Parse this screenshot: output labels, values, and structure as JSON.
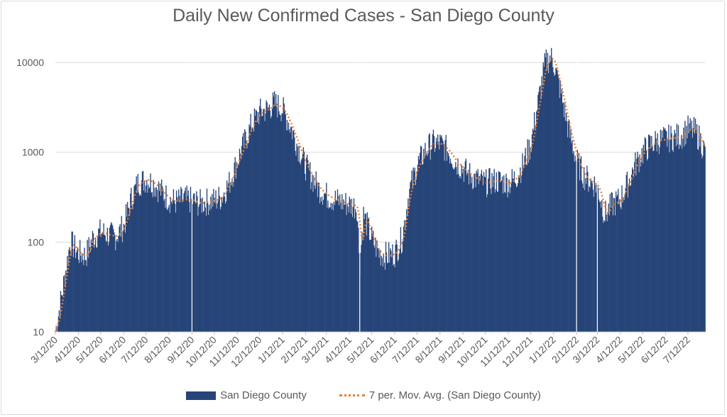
{
  "chart_data": {
    "type": "bar",
    "title": "Daily New Confirmed Cases - San Diego County",
    "y_scale": "log",
    "ylim": [
      10,
      20000
    ],
    "y_ticks": [
      "10",
      "100",
      "1000",
      "10000"
    ],
    "x_ticks": [
      "3/12/20",
      "4/12/20",
      "5/12/20",
      "6/12/20",
      "7/12/20",
      "8/12/20",
      "9/12/20",
      "10/12/20",
      "11/12/20",
      "12/12/20",
      "1/12/21",
      "2/12/21",
      "3/12/21",
      "4/12/21",
      "5/12/21",
      "6/12/21",
      "7/12/21",
      "8/12/21",
      "9/12/21",
      "10/12/21",
      "11/12/21",
      "12/12/21",
      "1/12/22",
      "2/12/22",
      "3/12/22",
      "4/12/22",
      "5/12/22",
      "6/12/22",
      "7/12/22"
    ],
    "grid": true,
    "legend_position": "bottom",
    "series": [
      {
        "name": "San Diego County",
        "kind": "bar",
        "color": "#264478",
        "points": [
          [
            "3/12/20",
            10
          ],
          [
            "3/22/20",
            30
          ],
          [
            "4/1/20",
            100
          ],
          [
            "4/12/20",
            75
          ],
          [
            "4/22/20",
            70
          ],
          [
            "5/1/20",
            110
          ],
          [
            "5/12/20",
            130
          ],
          [
            "5/22/20",
            120
          ],
          [
            "6/1/20",
            115
          ],
          [
            "6/12/20",
            150
          ],
          [
            "6/22/20",
            300
          ],
          [
            "7/1/20",
            450
          ],
          [
            "7/12/20",
            500
          ],
          [
            "7/22/20",
            450
          ],
          [
            "8/1/20",
            370
          ],
          [
            "8/12/20",
            300
          ],
          [
            "8/22/20",
            280
          ],
          [
            "9/1/20",
            300
          ],
          [
            "9/12/20",
            290
          ],
          [
            "9/22/20",
            270
          ],
          [
            "10/1/20",
            280
          ],
          [
            "10/12/20",
            290
          ],
          [
            "10/22/20",
            320
          ],
          [
            "11/1/20",
            450
          ],
          [
            "11/12/20",
            800
          ],
          [
            "11/22/20",
            1300
          ],
          [
            "12/1/20",
            2000
          ],
          [
            "12/12/20",
            2800
          ],
          [
            "12/22/20",
            3000
          ],
          [
            "1/1/21",
            3500
          ],
          [
            "1/12/21",
            3000
          ],
          [
            "1/22/21",
            2000
          ],
          [
            "2/1/21",
            1200
          ],
          [
            "2/12/21",
            700
          ],
          [
            "2/22/21",
            500
          ],
          [
            "3/1/21",
            400
          ],
          [
            "3/12/21",
            330
          ],
          [
            "3/22/21",
            300
          ],
          [
            "4/1/21",
            280
          ],
          [
            "4/12/21",
            260
          ],
          [
            "4/22/21",
            250
          ],
          [
            "4/26/21",
            60
          ],
          [
            "5/1/21",
            200
          ],
          [
            "5/12/21",
            110
          ],
          [
            "5/22/21",
            75
          ],
          [
            "6/1/21",
            70
          ],
          [
            "6/12/21",
            75
          ],
          [
            "6/22/21",
            110
          ],
          [
            "7/1/21",
            350
          ],
          [
            "7/12/21",
            700
          ],
          [
            "7/22/21",
            1000
          ],
          [
            "8/1/21",
            1250
          ],
          [
            "8/12/21",
            1250
          ],
          [
            "8/22/21",
            1050
          ],
          [
            "9/1/21",
            800
          ],
          [
            "9/12/21",
            650
          ],
          [
            "9/22/21",
            550
          ],
          [
            "10/1/21",
            500
          ],
          [
            "10/12/21",
            450
          ],
          [
            "10/22/21",
            480
          ],
          [
            "11/1/21",
            480
          ],
          [
            "11/12/21",
            450
          ],
          [
            "11/22/21",
            520
          ],
          [
            "12/1/21",
            700
          ],
          [
            "12/12/21",
            1200
          ],
          [
            "12/22/21",
            3500
          ],
          [
            "1/1/22",
            10000
          ],
          [
            "1/8/22",
            11500
          ],
          [
            "1/12/22",
            10000
          ],
          [
            "1/22/22",
            4500
          ],
          [
            "2/1/22",
            1800
          ],
          [
            "2/12/22",
            800
          ],
          [
            "2/22/22",
            550
          ],
          [
            "3/1/22",
            480
          ],
          [
            "3/12/22",
            420
          ],
          [
            "3/22/22",
            200
          ],
          [
            "4/1/22",
            260
          ],
          [
            "4/12/22",
            300
          ],
          [
            "4/22/22",
            450
          ],
          [
            "5/1/22",
            700
          ],
          [
            "5/12/22",
            1000
          ],
          [
            "5/22/22",
            1200
          ],
          [
            "6/1/22",
            1350
          ],
          [
            "6/12/22",
            1400
          ],
          [
            "6/22/22",
            1450
          ],
          [
            "7/1/22",
            1500
          ],
          [
            "7/12/22",
            1800
          ],
          [
            "7/22/22",
            1700
          ],
          [
            "7/29/22",
            1350
          ],
          [
            "8/4/22",
            1000
          ]
        ]
      },
      {
        "name": "7 per. Mov. Avg. (San Diego County)",
        "kind": "moving-average-line",
        "color": "#ed7d31",
        "period": 7
      }
    ]
  },
  "legend": {
    "bar_label": "San Diego County",
    "line_label": "7 per. Mov. Avg. (San Diego County)"
  }
}
